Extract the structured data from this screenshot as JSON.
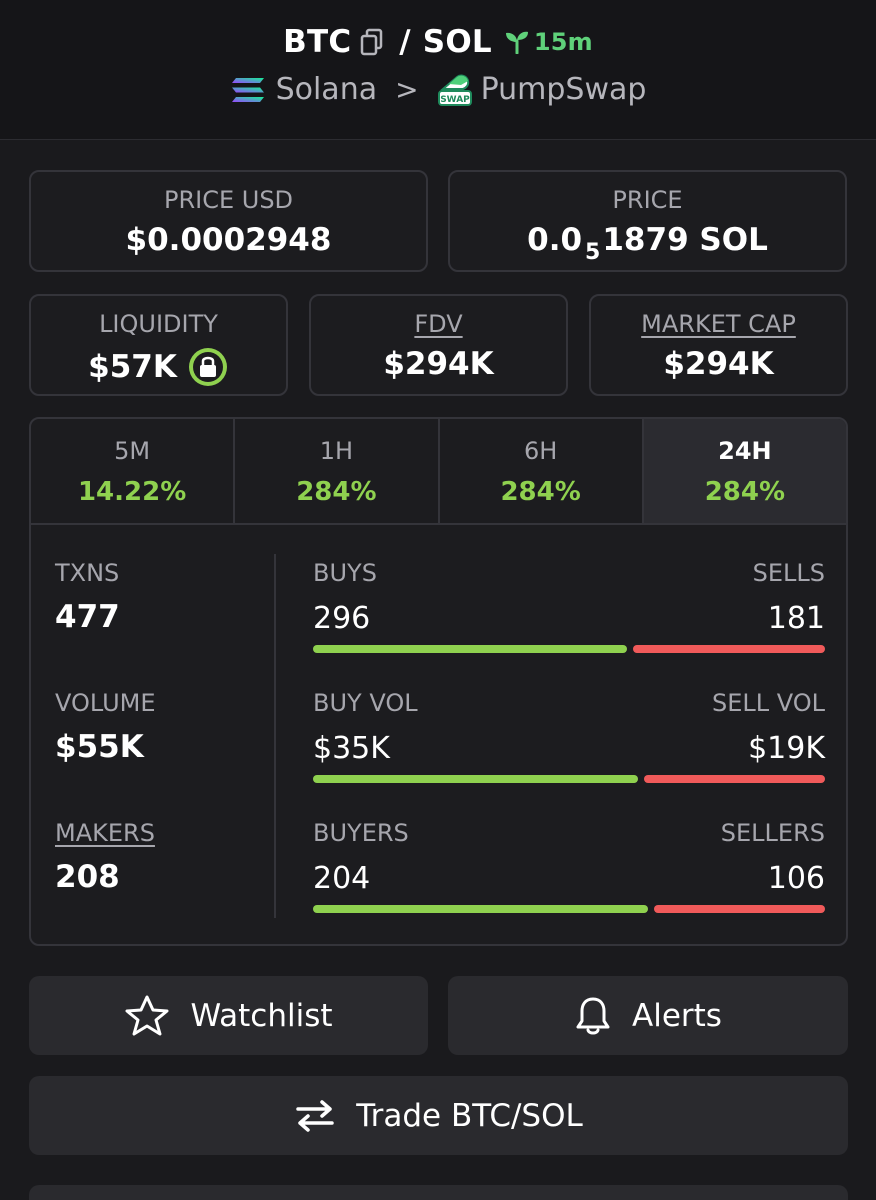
{
  "header": {
    "base": "BTC",
    "slash": "/",
    "quote": "SOL",
    "age": "15m",
    "chain": "Solana",
    "separator": ">",
    "dex": "PumpSwap",
    "dex_logo_text": "SWAP"
  },
  "price_cards": {
    "price_usd_label": "PRICE USD",
    "price_usd": "$0.0002948",
    "price_label": "PRICE",
    "price_prefix": "0.0",
    "price_zeros": "5",
    "price_rest": "1879 SOL"
  },
  "metrics_cards": {
    "liquidity_label": "LIQUIDITY",
    "liquidity": "$57K",
    "fdv_label": "FDV",
    "fdv": "$294K",
    "mcap_label": "MARKET CAP",
    "mcap": "$294K"
  },
  "timeframes": [
    {
      "label": "5M",
      "change": "14.22%"
    },
    {
      "label": "1H",
      "change": "284%"
    },
    {
      "label": "6H",
      "change": "284%"
    },
    {
      "label": "24H",
      "change": "284%",
      "active": true
    }
  ],
  "stats": {
    "txns_label": "TXNS",
    "txns": "477",
    "volume_label": "VOLUME",
    "volume": "$55K",
    "makers_label": "MAKERS",
    "makers": "208",
    "buys_label": "BUYS",
    "buys": "296",
    "sells_label": "SELLS",
    "sells": "181",
    "buys_ratio": 0.62,
    "buyvol_label": "BUY VOL",
    "buyvol": "$35K",
    "sellvol_label": "SELL VOL",
    "sellvol": "$19K",
    "buyvol_ratio": 0.64,
    "buyers_label": "BUYERS",
    "buyers": "204",
    "sellers_label": "SELLERS",
    "sellers": "106",
    "buyers_ratio": 0.66
  },
  "buttons": {
    "watchlist": "Watchlist",
    "alerts": "Alerts",
    "trade": "Trade BTC/SOL"
  },
  "colors": {
    "buy": "#8fd14f",
    "sell": "#f05a5a",
    "age": "#5fd17a"
  }
}
